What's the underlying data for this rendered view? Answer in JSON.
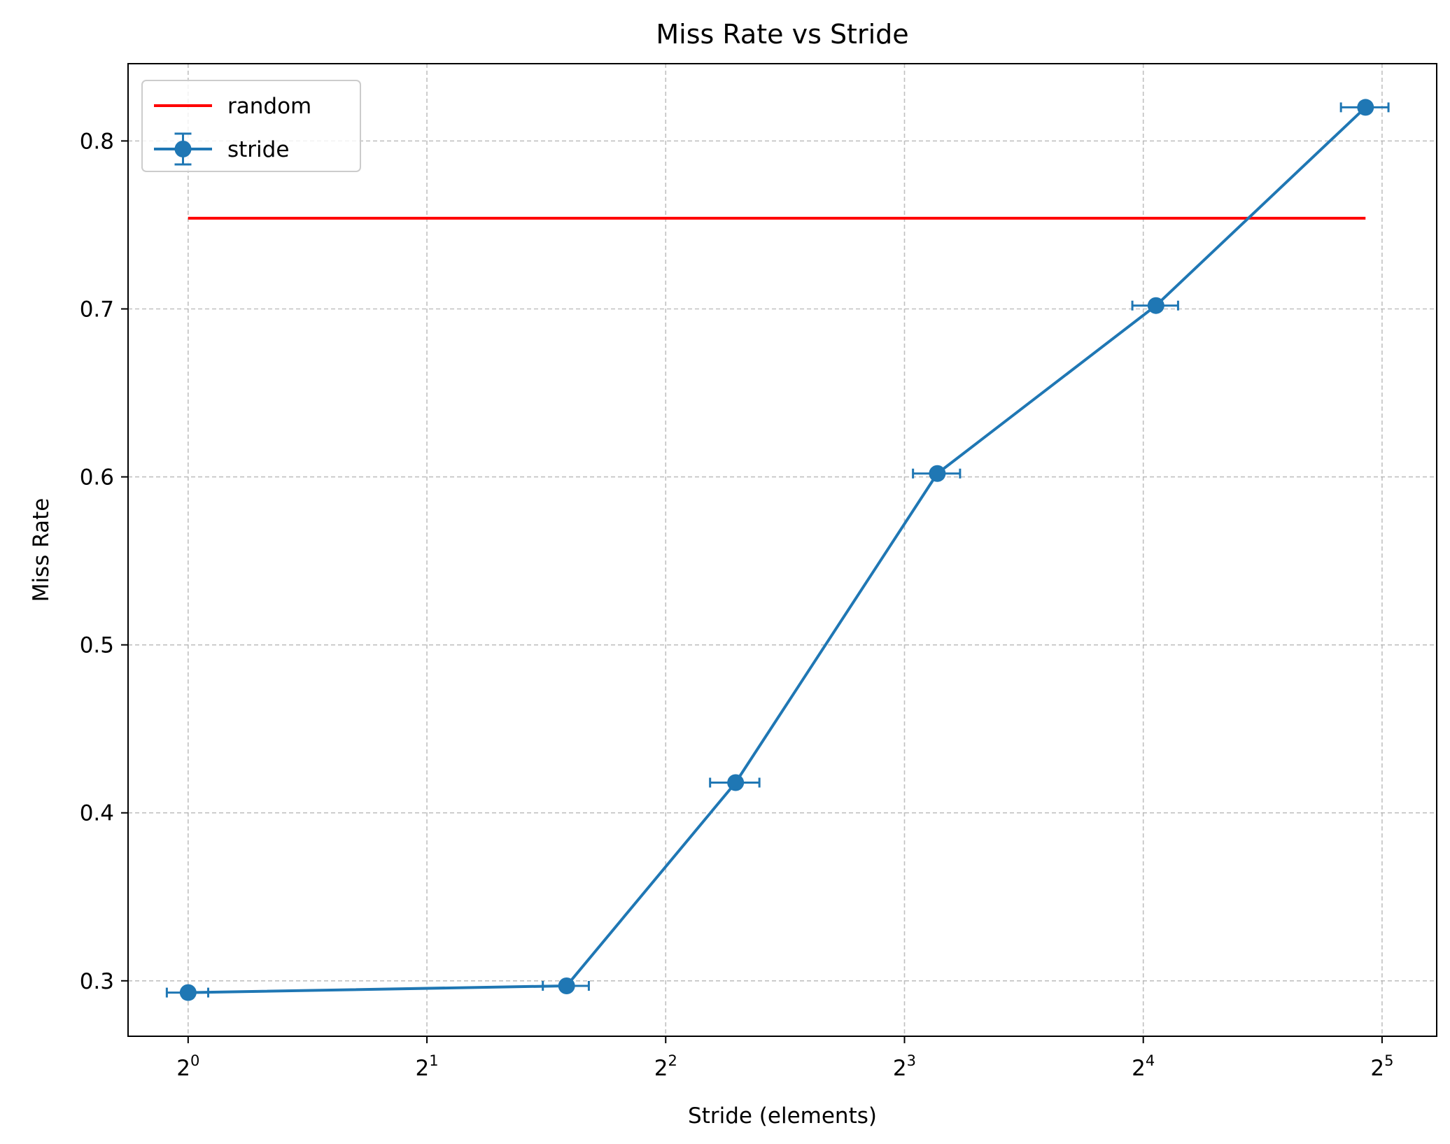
{
  "chart_data": {
    "type": "line",
    "title": "Miss Rate vs Stride",
    "xlabel": "Stride (elements)",
    "ylabel": "Miss Rate",
    "x_scale": "log2",
    "x_ticks": [
      {
        "value": 1,
        "base": "2",
        "exp": "0"
      },
      {
        "value": 2,
        "base": "2",
        "exp": "1"
      },
      {
        "value": 4,
        "base": "2",
        "exp": "2"
      },
      {
        "value": 8,
        "base": "2",
        "exp": "3"
      },
      {
        "value": 16,
        "base": "2",
        "exp": "4"
      },
      {
        "value": 32,
        "base": "2",
        "exp": "5"
      }
    ],
    "y_ticks": [
      "0.3",
      "0.4",
      "0.5",
      "0.6",
      "0.7",
      "0.8"
    ],
    "xlim": [
      0.84,
      37.5
    ],
    "ylim": [
      0.267,
      0.846
    ],
    "grid": true,
    "legend_position": "top-left",
    "series": [
      {
        "name": "random",
        "kind": "line",
        "color": "#ff0000",
        "x": [
          1,
          30.5
        ],
        "y": [
          0.754,
          0.754
        ]
      },
      {
        "name": "stride",
        "kind": "errorbar",
        "color": "#1f77b4",
        "x": [
          1,
          3,
          4.9,
          8.8,
          16.6,
          30.5
        ],
        "y": [
          0.293,
          0.297,
          0.418,
          0.602,
          0.702,
          0.82
        ],
        "xerr": [
          0.06,
          0.2,
          0.35,
          0.6,
          1.1,
          2.1
        ]
      }
    ]
  }
}
